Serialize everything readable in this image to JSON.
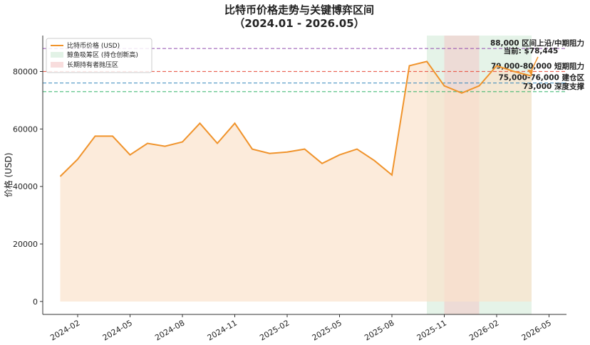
{
  "chart_data": {
    "type": "line",
    "title": "比特币价格走势与关键博弈区间",
    "subtitle": "（2024.01 - 2026.05）",
    "y_label": "价格 (USD)",
    "x": [
      "2024-01",
      "2024-02",
      "2024-03",
      "2024-04",
      "2024-05",
      "2024-06",
      "2024-07",
      "2024-08",
      "2024-09",
      "2024-10",
      "2024-11",
      "2024-12",
      "2025-01",
      "2025-02",
      "2025-03",
      "2025-04",
      "2025-05",
      "2025-06",
      "2025-07",
      "2025-08",
      "2025-09",
      "2025-10",
      "2025-11",
      "2025-12",
      "2026-01",
      "2026-02",
      "2026-03",
      "2026-04"
    ],
    "series": [
      {
        "name": "比特币价格 (USD)",
        "color": "#f0932b",
        "values": [
          43500,
          49500,
          57500,
          57500,
          51000,
          55000,
          54000,
          55500,
          62000,
          55000,
          62000,
          53000,
          51500,
          52000,
          53000,
          48000,
          51000,
          53000,
          49000,
          44000,
          82000,
          83500,
          75000,
          72500,
          75000,
          82000,
          80000,
          78445
        ]
      }
    ],
    "fill_color": "#fbe3cc",
    "zones": [
      {
        "name": "鲸鱼吸筹区 (持仓创新高)",
        "color": "#cfe9d6",
        "start": "2025-10",
        "end": "2026-04"
      },
      {
        "name": "长期持有者抛压区",
        "color": "#f4c6c6",
        "start": "2025-11",
        "end": "2026-01"
      }
    ],
    "levels": [
      {
        "value": 88000,
        "label": "88,000 区间上沿/中期阻力",
        "color": "#8e44ad"
      },
      {
        "value": 80000,
        "label": "79,000-80,000 短期阻力",
        "color": "#e74c3c"
      },
      {
        "value": 76000,
        "label": "75,000-76,000 建仓区",
        "color": "#2980b9"
      },
      {
        "value": 73000,
        "label": "73,000 深度支撑",
        "color": "#27ae60"
      }
    ],
    "annotation": "当前: $78,445",
    "xlim": [
      "2023-12",
      "2026-06"
    ],
    "xticks": [
      "2024-02",
      "2024-05",
      "2024-08",
      "2024-11",
      "2025-02",
      "2025-05",
      "2025-08",
      "2025-11",
      "2026-02",
      "2026-05"
    ],
    "ylim": [
      -4500,
      92500
    ],
    "yticks": [
      0,
      20000,
      40000,
      60000,
      80000
    ],
    "legend": "upper left"
  }
}
